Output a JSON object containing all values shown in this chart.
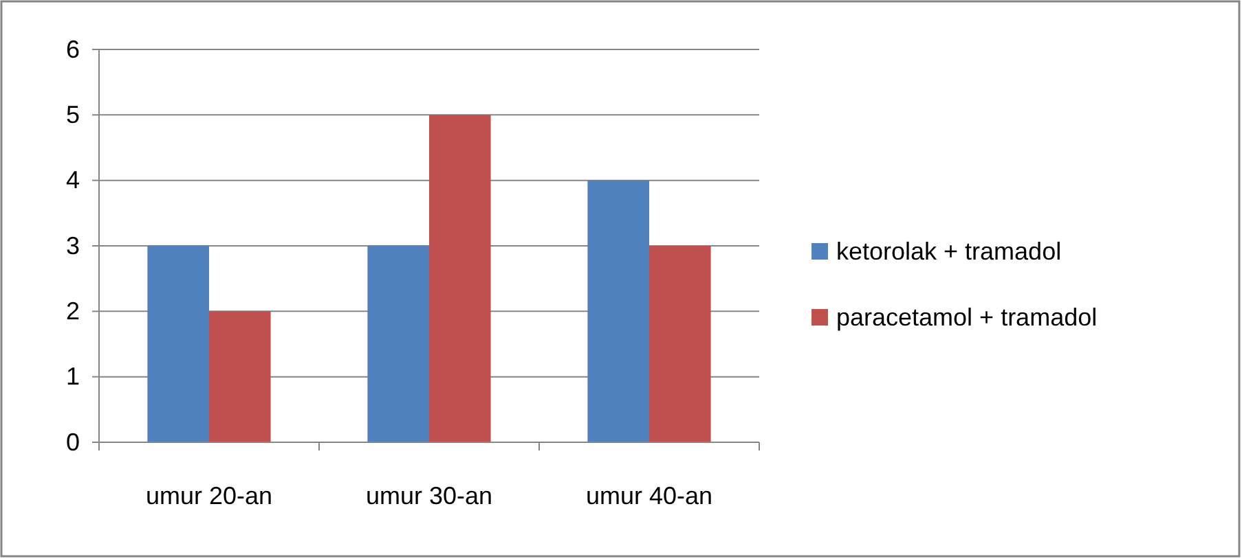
{
  "chart_data": {
    "type": "bar",
    "categories": [
      "umur 20-an",
      "umur 30-an",
      "umur 40-an"
    ],
    "series": [
      {
        "name": "ketorolak + tramadol",
        "color": "#4f81bd",
        "values": [
          3,
          3,
          4
        ]
      },
      {
        "name": "paracetamol + tramadol",
        "color": "#c0504d",
        "values": [
          2,
          5,
          3
        ]
      }
    ],
    "ylim": [
      0,
      6
    ],
    "yticks": [
      0,
      1,
      2,
      3,
      4,
      5,
      6
    ],
    "grid": "y",
    "legend": "right"
  }
}
